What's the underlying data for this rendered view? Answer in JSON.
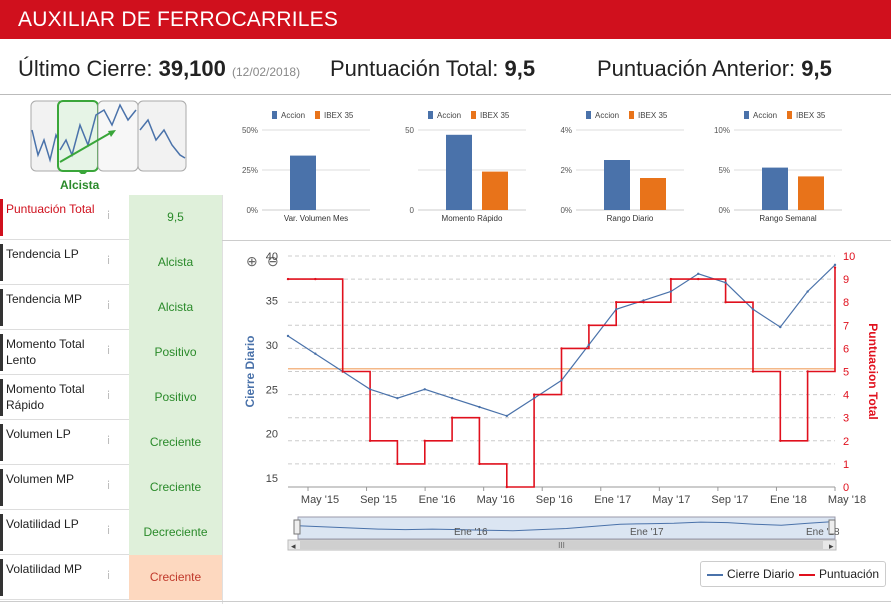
{
  "header": {
    "title": "AUXILIAR DE FERROCARRILES"
  },
  "summary": {
    "last_close_label": "Último Cierre:",
    "last_close_value": "39,100",
    "last_close_date": "(12/02/2018)",
    "total_score_label": "Puntuación Total:",
    "total_score_value": "9,5",
    "prev_score_label": "Puntuación Anterior:",
    "prev_score_value": "9,5"
  },
  "trend_selector": {
    "selected_label": "Alcista"
  },
  "colors": {
    "brand": "#d0101d",
    "accion": "#4a72aa",
    "ibex": "#e8731a",
    "positive_bg": "#dff0da",
    "positive_text": "#2a8a2a",
    "warn_bg": "#fdd8bf",
    "warn_text": "#c0392b"
  },
  "indicators": [
    {
      "label": "Puntuación Total",
      "value": "9,5",
      "status": "positive",
      "active": true
    },
    {
      "label": "Tendencia LP",
      "value": "Alcista",
      "status": "positive"
    },
    {
      "label": "Tendencia MP",
      "value": "Alcista",
      "status": "positive"
    },
    {
      "label": "Momento Total Lento",
      "value": "Positivo",
      "status": "positive"
    },
    {
      "label": "Momento Total Rápido",
      "value": "Positivo",
      "status": "positive"
    },
    {
      "label": "Volumen LP",
      "value": "Creciente",
      "status": "positive"
    },
    {
      "label": "Volumen MP",
      "value": "Creciente",
      "status": "positive"
    },
    {
      "label": "Volatilidad LP",
      "value": "Decreciente",
      "status": "positive"
    },
    {
      "label": "Volatilidad MP",
      "value": "Creciente",
      "status": "warning"
    }
  ],
  "chart_data": [
    {
      "type": "bar",
      "title": "Var. Volumen Mes",
      "legend": [
        "Accion",
        "IBEX 35"
      ],
      "yticks": [
        "0%",
        "25%",
        "50%"
      ],
      "ylim": [
        0,
        50
      ],
      "series": [
        {
          "name": "Accion",
          "values": [
            34
          ]
        },
        {
          "name": "IBEX 35",
          "values": [
            0
          ]
        }
      ]
    },
    {
      "type": "bar",
      "title": "Momento Rápido",
      "legend": [
        "Accion",
        "IBEX 35"
      ],
      "yticks": [
        "0",
        "50"
      ],
      "ylim": [
        0,
        50
      ],
      "series": [
        {
          "name": "Accion",
          "values": [
            47
          ]
        },
        {
          "name": "IBEX 35",
          "values": [
            24
          ]
        }
      ]
    },
    {
      "type": "bar",
      "title": "Rango Diario",
      "legend": [
        "Accion",
        "IBEX 35"
      ],
      "yticks": [
        "0%",
        "2%",
        "4%"
      ],
      "ylim": [
        0,
        4
      ],
      "series": [
        {
          "name": "Accion",
          "values": [
            2.5
          ]
        },
        {
          "name": "IBEX 35",
          "values": [
            1.6
          ]
        }
      ]
    },
    {
      "type": "bar",
      "title": "Rango Semanal",
      "legend": [
        "Accion",
        "IBEX 35"
      ],
      "yticks": [
        "0%",
        "5%",
        "10%"
      ],
      "ylim": [
        0,
        10
      ],
      "series": [
        {
          "name": "Accion",
          "values": [
            5.3
          ]
        },
        {
          "name": "IBEX 35",
          "values": [
            4.2
          ]
        }
      ]
    },
    {
      "type": "line",
      "title": "",
      "ylabel": "Cierre Diario",
      "y2label": "Puntuacion Total",
      "ylim": [
        14,
        40
      ],
      "y2lim": [
        0,
        10
      ],
      "yticks": [
        "15",
        "20",
        "25",
        "30",
        "35",
        "40"
      ],
      "y2ticks": [
        "0",
        "1",
        "2",
        "3",
        "4",
        "5",
        "6",
        "7",
        "8",
        "9",
        "10"
      ],
      "xticks": [
        "May '15",
        "Sep '15",
        "Ene '16",
        "May '16",
        "Sep '16",
        "Ene '17",
        "May '17",
        "Sep '17",
        "Ene '18",
        "May '18"
      ],
      "x": [
        0,
        2,
        4,
        6,
        8,
        10,
        12,
        14,
        16,
        18,
        20,
        22,
        24,
        26,
        28,
        30,
        32,
        34,
        36,
        38,
        40
      ],
      "series": [
        {
          "name": "Cierre Diario",
          "values": [
            31,
            29,
            27,
            25,
            24,
            25,
            24,
            23,
            22,
            24,
            26,
            30,
            34,
            35,
            36,
            38,
            37,
            34,
            32,
            36,
            39
          ]
        },
        {
          "name": "Puntuación",
          "values": [
            9,
            9,
            5,
            2,
            1,
            2,
            3,
            1,
            0,
            4,
            6,
            7,
            8,
            8,
            9,
            9,
            8,
            5,
            2,
            5,
            9.5
          ]
        }
      ],
      "reference_line": 27.3,
      "navigator_labels": [
        "Ene '16",
        "Ene '17",
        "Ene '18"
      ],
      "legend": [
        "Cierre Diario",
        "Puntuación"
      ]
    }
  ]
}
